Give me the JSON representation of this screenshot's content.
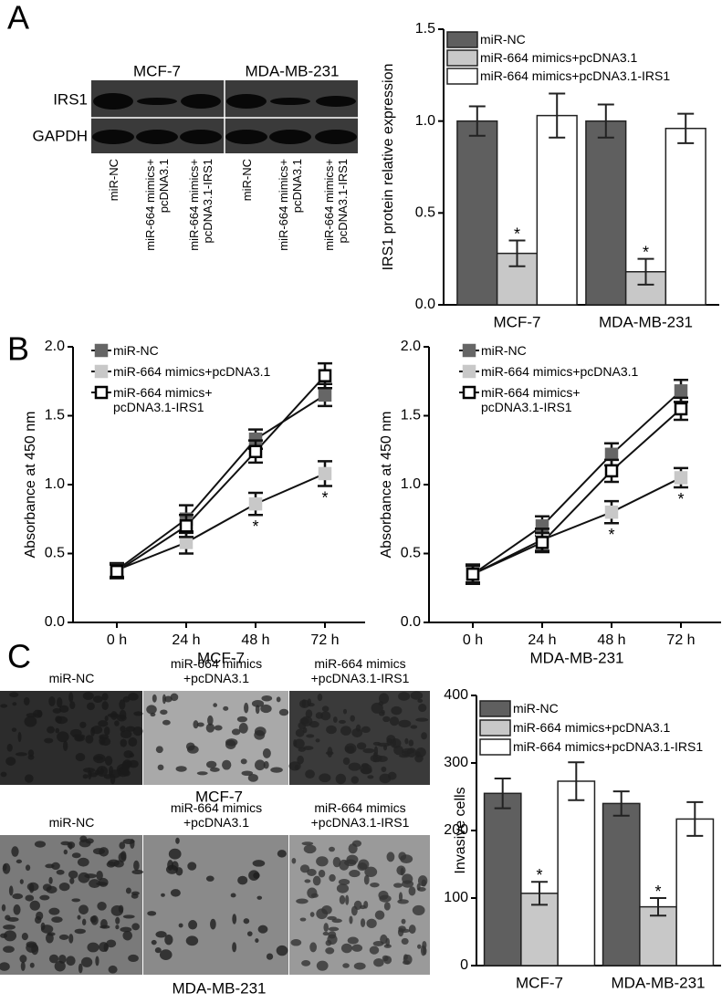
{
  "panel_labels": [
    "A",
    "B",
    "C"
  ],
  "western_blot": {
    "cell_lines": [
      "MCF-7",
      "MDA-MB-231"
    ],
    "proteins": [
      "IRS1",
      "GAPDH"
    ],
    "lanes": [
      "miR-NC",
      "miR-664 mimics+ pcDNA3.1",
      "miR-664 mimics+ pcDNA3.1-IRS1",
      "miR-NC",
      "miR-664 mimics+ pcDNA3.1",
      "miR-664 mimics+ pcDNA3.1-IRS1"
    ]
  },
  "invasion_images": [
    {
      "cell_line": "MCF-7",
      "columns": [
        "miR-NC",
        "miR-664 mimics +pcDNA3.1",
        "miR-664 mimics +pcDNA3.1-IRS1"
      ]
    },
    {
      "cell_line": "MDA-MB-231",
      "columns": [
        "miR-NC",
        "miR-664 mimics +pcDNA3.1",
        "miR-664 mimics +pcDNA3.1-IRS1"
      ]
    }
  ],
  "chart_data": [
    {
      "type": "bar",
      "ylabel": "IRS1 protein relative expression",
      "categories": [
        "MCF-7",
        "MDA-MB-231"
      ],
      "ylim": [
        0,
        1.5
      ],
      "yticks": [
        {
          "value": 0,
          "label": "0.0"
        },
        {
          "value": 0.5,
          "label": "0.5"
        },
        {
          "value": 1,
          "label": "1.0"
        },
        {
          "value": 1.5,
          "label": "1.5"
        }
      ],
      "legend": "upper left",
      "series": [
        {
          "name": "miR-NC",
          "color": "#5f5f5f",
          "values": [
            1.0,
            1.0
          ],
          "errors": [
            0.08,
            0.09
          ]
        },
        {
          "name": "miR-664 mimics+pcDNA3.1",
          "color": "#c8c8c8",
          "values": [
            0.28,
            0.18
          ],
          "errors": [
            0.07,
            0.07
          ],
          "annotations": [
            "*",
            "*"
          ]
        },
        {
          "name": "miR-664 mimics+pcDNA3.1-IRS1",
          "color": "#ffffff",
          "values": [
            1.03,
            0.96
          ],
          "errors": [
            0.12,
            0.08
          ]
        }
      ]
    },
    {
      "type": "line",
      "xlabel": "MCF-7",
      "ylabel": "Absorbance at 450 nm",
      "categories": [
        "0 h",
        "24 h",
        "48 h",
        "72 h"
      ],
      "ylim": [
        0,
        2
      ],
      "yticks": [
        {
          "value": 0,
          "label": "0.0"
        },
        {
          "value": 0.5,
          "label": "0.5"
        },
        {
          "value": 1,
          "label": "1.0"
        },
        {
          "value": 1.5,
          "label": "1.5"
        },
        {
          "value": 2,
          "label": "2.0"
        }
      ],
      "legend": "upper left",
      "series": [
        {
          "name": "miR-NC",
          "color": "#666666",
          "values": [
            0.38,
            0.75,
            1.33,
            1.65
          ],
          "errors": [
            0.05,
            0.1,
            0.07,
            0.08
          ]
        },
        {
          "name": "miR-664 mimics+pcDNA3.1",
          "color": "#c8c8c8",
          "values": [
            0.38,
            0.58,
            0.86,
            1.08
          ],
          "errors": [
            0.05,
            0.08,
            0.08,
            0.09
          ],
          "annotations": [
            null,
            null,
            "*",
            "*"
          ]
        },
        {
          "name": "miR-664 mimics+ pcDNA3.1-IRS1",
          "color": "#ffffff",
          "values": [
            0.37,
            0.7,
            1.24,
            1.79
          ],
          "errors": [
            0.05,
            0.08,
            0.08,
            0.09
          ]
        }
      ]
    },
    {
      "type": "line",
      "xlabel": "MDA-MB-231",
      "ylabel": "Absorbance at 450 nm",
      "categories": [
        "0 h",
        "24 h",
        "48 h",
        "72 h"
      ],
      "ylim": [
        0,
        2
      ],
      "yticks": [
        {
          "value": 0,
          "label": "0.0"
        },
        {
          "value": 0.5,
          "label": "0.5"
        },
        {
          "value": 1,
          "label": "1.0"
        },
        {
          "value": 1.5,
          "label": "1.5"
        },
        {
          "value": 2,
          "label": "2.0"
        }
      ],
      "legend": "upper left",
      "series": [
        {
          "name": "miR-NC",
          "color": "#666666",
          "values": [
            0.35,
            0.7,
            1.22,
            1.68
          ],
          "errors": [
            0.07,
            0.07,
            0.08,
            0.08
          ]
        },
        {
          "name": "miR-664 mimics+pcDNA3.1",
          "color": "#c8c8c8",
          "values": [
            0.35,
            0.6,
            0.8,
            1.05
          ],
          "errors": [
            0.06,
            0.08,
            0.08,
            0.07
          ],
          "annotations": [
            null,
            null,
            "*",
            "*"
          ]
        },
        {
          "name": "miR-664 mimics+ pcDNA3.1-IRS1",
          "color": "#ffffff",
          "values": [
            0.35,
            0.58,
            1.1,
            1.55
          ],
          "errors": [
            0.07,
            0.07,
            0.08,
            0.08
          ]
        }
      ]
    },
    {
      "type": "bar",
      "ylabel": "Invasive cells",
      "categories": [
        "MCF-7",
        "MDA-MB-231"
      ],
      "ylim": [
        0,
        400
      ],
      "yticks": [
        0,
        100,
        200,
        300,
        400
      ],
      "legend": "upper left",
      "series": [
        {
          "name": "miR-NC",
          "color": "#5f5f5f",
          "values": [
            255,
            240
          ],
          "errors": [
            22,
            18
          ]
        },
        {
          "name": "miR-664 mimics+pcDNA3.1",
          "color": "#c8c8c8",
          "values": [
            107,
            87
          ],
          "errors": [
            17,
            13
          ],
          "annotations": [
            "*",
            "*"
          ]
        },
        {
          "name": "miR-664 mimics+pcDNA3.1-IRS1",
          "color": "#ffffff",
          "values": [
            273,
            217
          ],
          "errors": [
            28,
            25
          ]
        }
      ]
    }
  ]
}
